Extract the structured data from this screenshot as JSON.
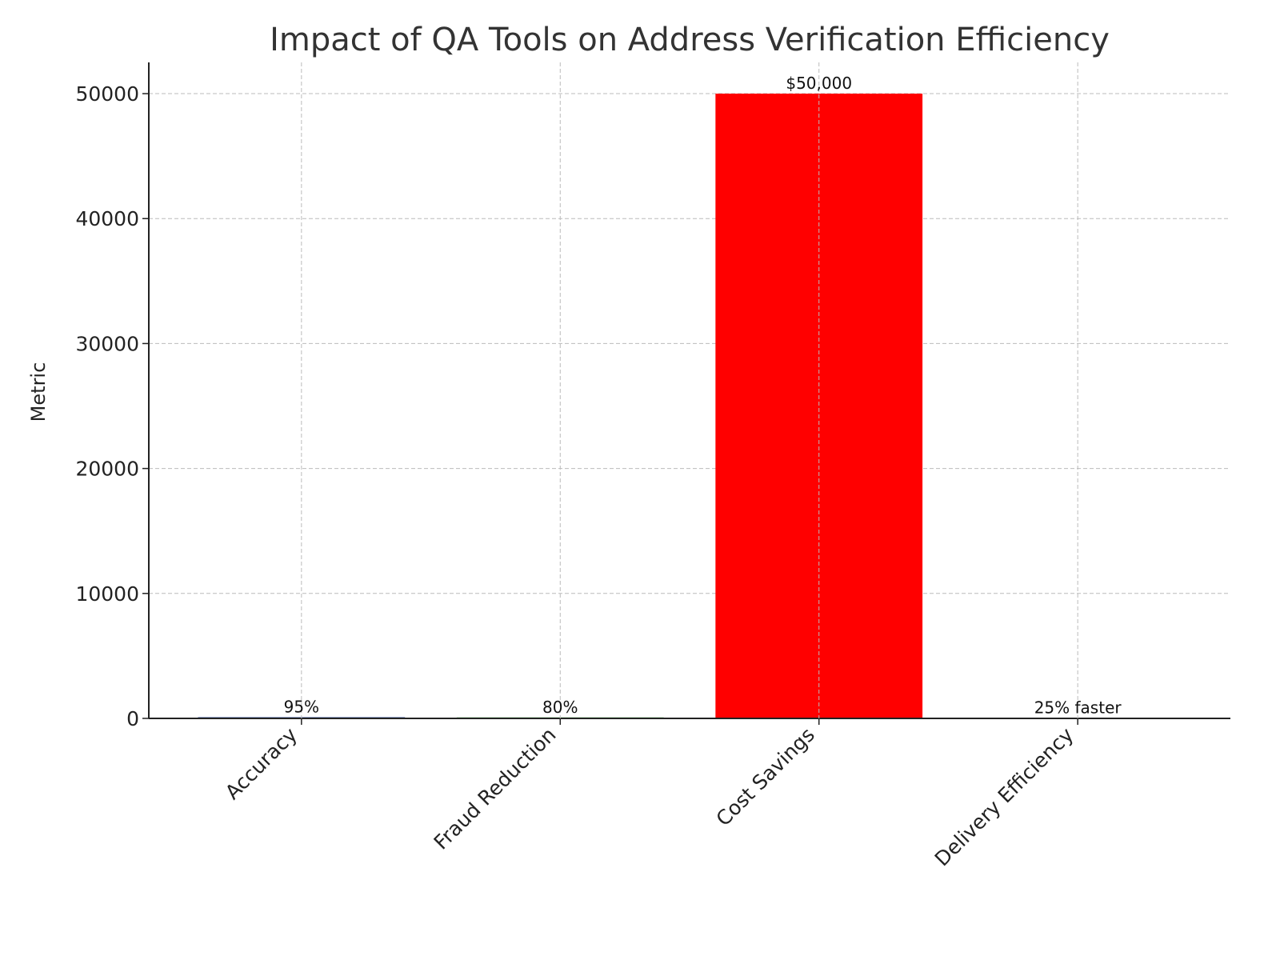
{
  "chart_data": {
    "type": "bar",
    "title": "Impact of QA Tools on Address Verification Efficiency",
    "xlabel": "",
    "ylabel": "Metric",
    "categories": [
      "Accuracy",
      "Fraud Reduction",
      "Cost Savings",
      "Delivery Efficiency"
    ],
    "values": [
      95,
      80,
      50000,
      25
    ],
    "data_labels": [
      "95%",
      "80%",
      "$50,000",
      "25% faster"
    ],
    "colors": [
      "#1f3f8f",
      "#2ca02c",
      "#ff0000",
      "#ff8c00"
    ],
    "ylim": [
      0,
      52500
    ],
    "yticks": [
      0,
      10000,
      20000,
      30000,
      40000,
      50000
    ],
    "grid": true
  }
}
